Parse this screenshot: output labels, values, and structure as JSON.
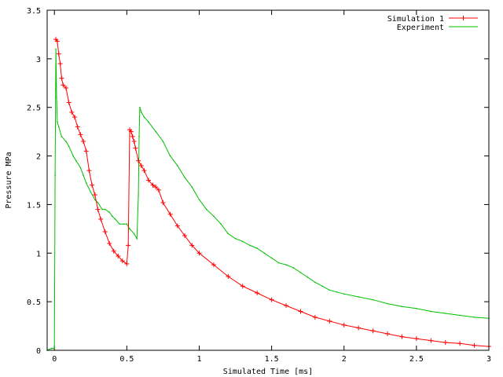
{
  "chart_data": {
    "type": "line",
    "title": "",
    "xlabel": "Simulated Time [ms]",
    "ylabel": "Pressure MPa",
    "xlim": [
      -0.05,
      3.0
    ],
    "ylim": [
      0,
      3.5
    ],
    "x_ticks": [
      {
        "value": 0,
        "label": "0"
      },
      {
        "value": 0.5,
        "label": "0.5"
      },
      {
        "value": 1,
        "label": "1"
      },
      {
        "value": 1.5,
        "label": "1.5"
      },
      {
        "value": 2,
        "label": "2"
      },
      {
        "value": 2.5,
        "label": "2.5"
      },
      {
        "value": 3,
        "label": "3"
      }
    ],
    "y_ticks": [
      {
        "value": 0,
        "label": "0"
      },
      {
        "value": 0.5,
        "label": "0.5"
      },
      {
        "value": 1,
        "label": "1"
      },
      {
        "value": 1.5,
        "label": "1.5"
      },
      {
        "value": 2,
        "label": "2"
      },
      {
        "value": 2.5,
        "label": "2.5"
      },
      {
        "value": 3,
        "label": "3"
      },
      {
        "value": 3.5,
        "label": "3.5"
      }
    ],
    "grid": false,
    "legend_position": "top-right",
    "series": [
      {
        "name": "Simulation 1",
        "color": "#ff0000",
        "marker": "plus",
        "x": [
          0.01,
          0.02,
          0.03,
          0.04,
          0.05,
          0.06,
          0.08,
          0.1,
          0.12,
          0.14,
          0.16,
          0.18,
          0.2,
          0.22,
          0.24,
          0.26,
          0.28,
          0.3,
          0.32,
          0.35,
          0.38,
          0.41,
          0.44,
          0.47,
          0.5,
          0.51,
          0.52,
          0.53,
          0.54,
          0.55,
          0.56,
          0.58,
          0.6,
          0.62,
          0.65,
          0.68,
          0.7,
          0.72,
          0.75,
          0.8,
          0.85,
          0.9,
          0.95,
          1.0,
          1.1,
          1.2,
          1.3,
          1.4,
          1.5,
          1.6,
          1.7,
          1.8,
          1.9,
          2.0,
          2.1,
          2.2,
          2.3,
          2.4,
          2.5,
          2.6,
          2.7,
          2.8,
          2.9,
          3.0
        ],
        "y": [
          3.2,
          3.18,
          3.05,
          2.95,
          2.8,
          2.73,
          2.7,
          2.55,
          2.45,
          2.4,
          2.3,
          2.22,
          2.15,
          2.05,
          1.85,
          1.7,
          1.6,
          1.45,
          1.35,
          1.22,
          1.1,
          1.02,
          0.97,
          0.92,
          0.89,
          1.08,
          2.27,
          2.25,
          2.2,
          2.15,
          2.08,
          1.95,
          1.9,
          1.85,
          1.75,
          1.7,
          1.68,
          1.65,
          1.52,
          1.4,
          1.28,
          1.18,
          1.08,
          1.0,
          0.88,
          0.76,
          0.66,
          0.59,
          0.52,
          0.46,
          0.4,
          0.34,
          0.3,
          0.26,
          0.23,
          0.2,
          0.17,
          0.14,
          0.12,
          0.1,
          0.08,
          0.07,
          0.05,
          0.04
        ]
      },
      {
        "name": "Experiment",
        "color": "#00c000",
        "x": [
          -0.05,
          -0.02,
          0.0,
          0.005,
          0.01,
          0.015,
          0.02,
          0.03,
          0.05,
          0.08,
          0.1,
          0.13,
          0.15,
          0.18,
          0.2,
          0.22,
          0.25,
          0.28,
          0.3,
          0.33,
          0.35,
          0.38,
          0.4,
          0.42,
          0.45,
          0.48,
          0.5,
          0.52,
          0.55,
          0.57,
          0.58,
          0.585,
          0.59,
          0.6,
          0.62,
          0.65,
          0.7,
          0.75,
          0.8,
          0.85,
          0.9,
          0.95,
          1.0,
          1.05,
          1.1,
          1.15,
          1.2,
          1.25,
          1.3,
          1.35,
          1.4,
          1.45,
          1.5,
          1.55,
          1.6,
          1.65,
          1.7,
          1.75,
          1.8,
          1.85,
          1.9,
          1.95,
          2.0,
          2.1,
          2.2,
          2.3,
          2.4,
          2.5,
          2.6,
          2.7,
          2.8,
          2.9,
          3.0
        ],
        "y": [
          0.0,
          0.02,
          0.02,
          1.8,
          3.1,
          2.6,
          2.35,
          2.3,
          2.2,
          2.15,
          2.1,
          2.0,
          1.95,
          1.88,
          1.8,
          1.72,
          1.63,
          1.55,
          1.52,
          1.45,
          1.45,
          1.42,
          1.38,
          1.35,
          1.3,
          1.3,
          1.3,
          1.25,
          1.2,
          1.15,
          1.6,
          2.2,
          2.5,
          2.45,
          2.4,
          2.35,
          2.25,
          2.15,
          2.0,
          1.9,
          1.78,
          1.68,
          1.55,
          1.45,
          1.38,
          1.3,
          1.2,
          1.15,
          1.12,
          1.08,
          1.05,
          1.0,
          0.95,
          0.9,
          0.88,
          0.85,
          0.8,
          0.75,
          0.7,
          0.66,
          0.62,
          0.6,
          0.58,
          0.55,
          0.52,
          0.48,
          0.45,
          0.43,
          0.4,
          0.38,
          0.36,
          0.34,
          0.33
        ]
      }
    ]
  }
}
